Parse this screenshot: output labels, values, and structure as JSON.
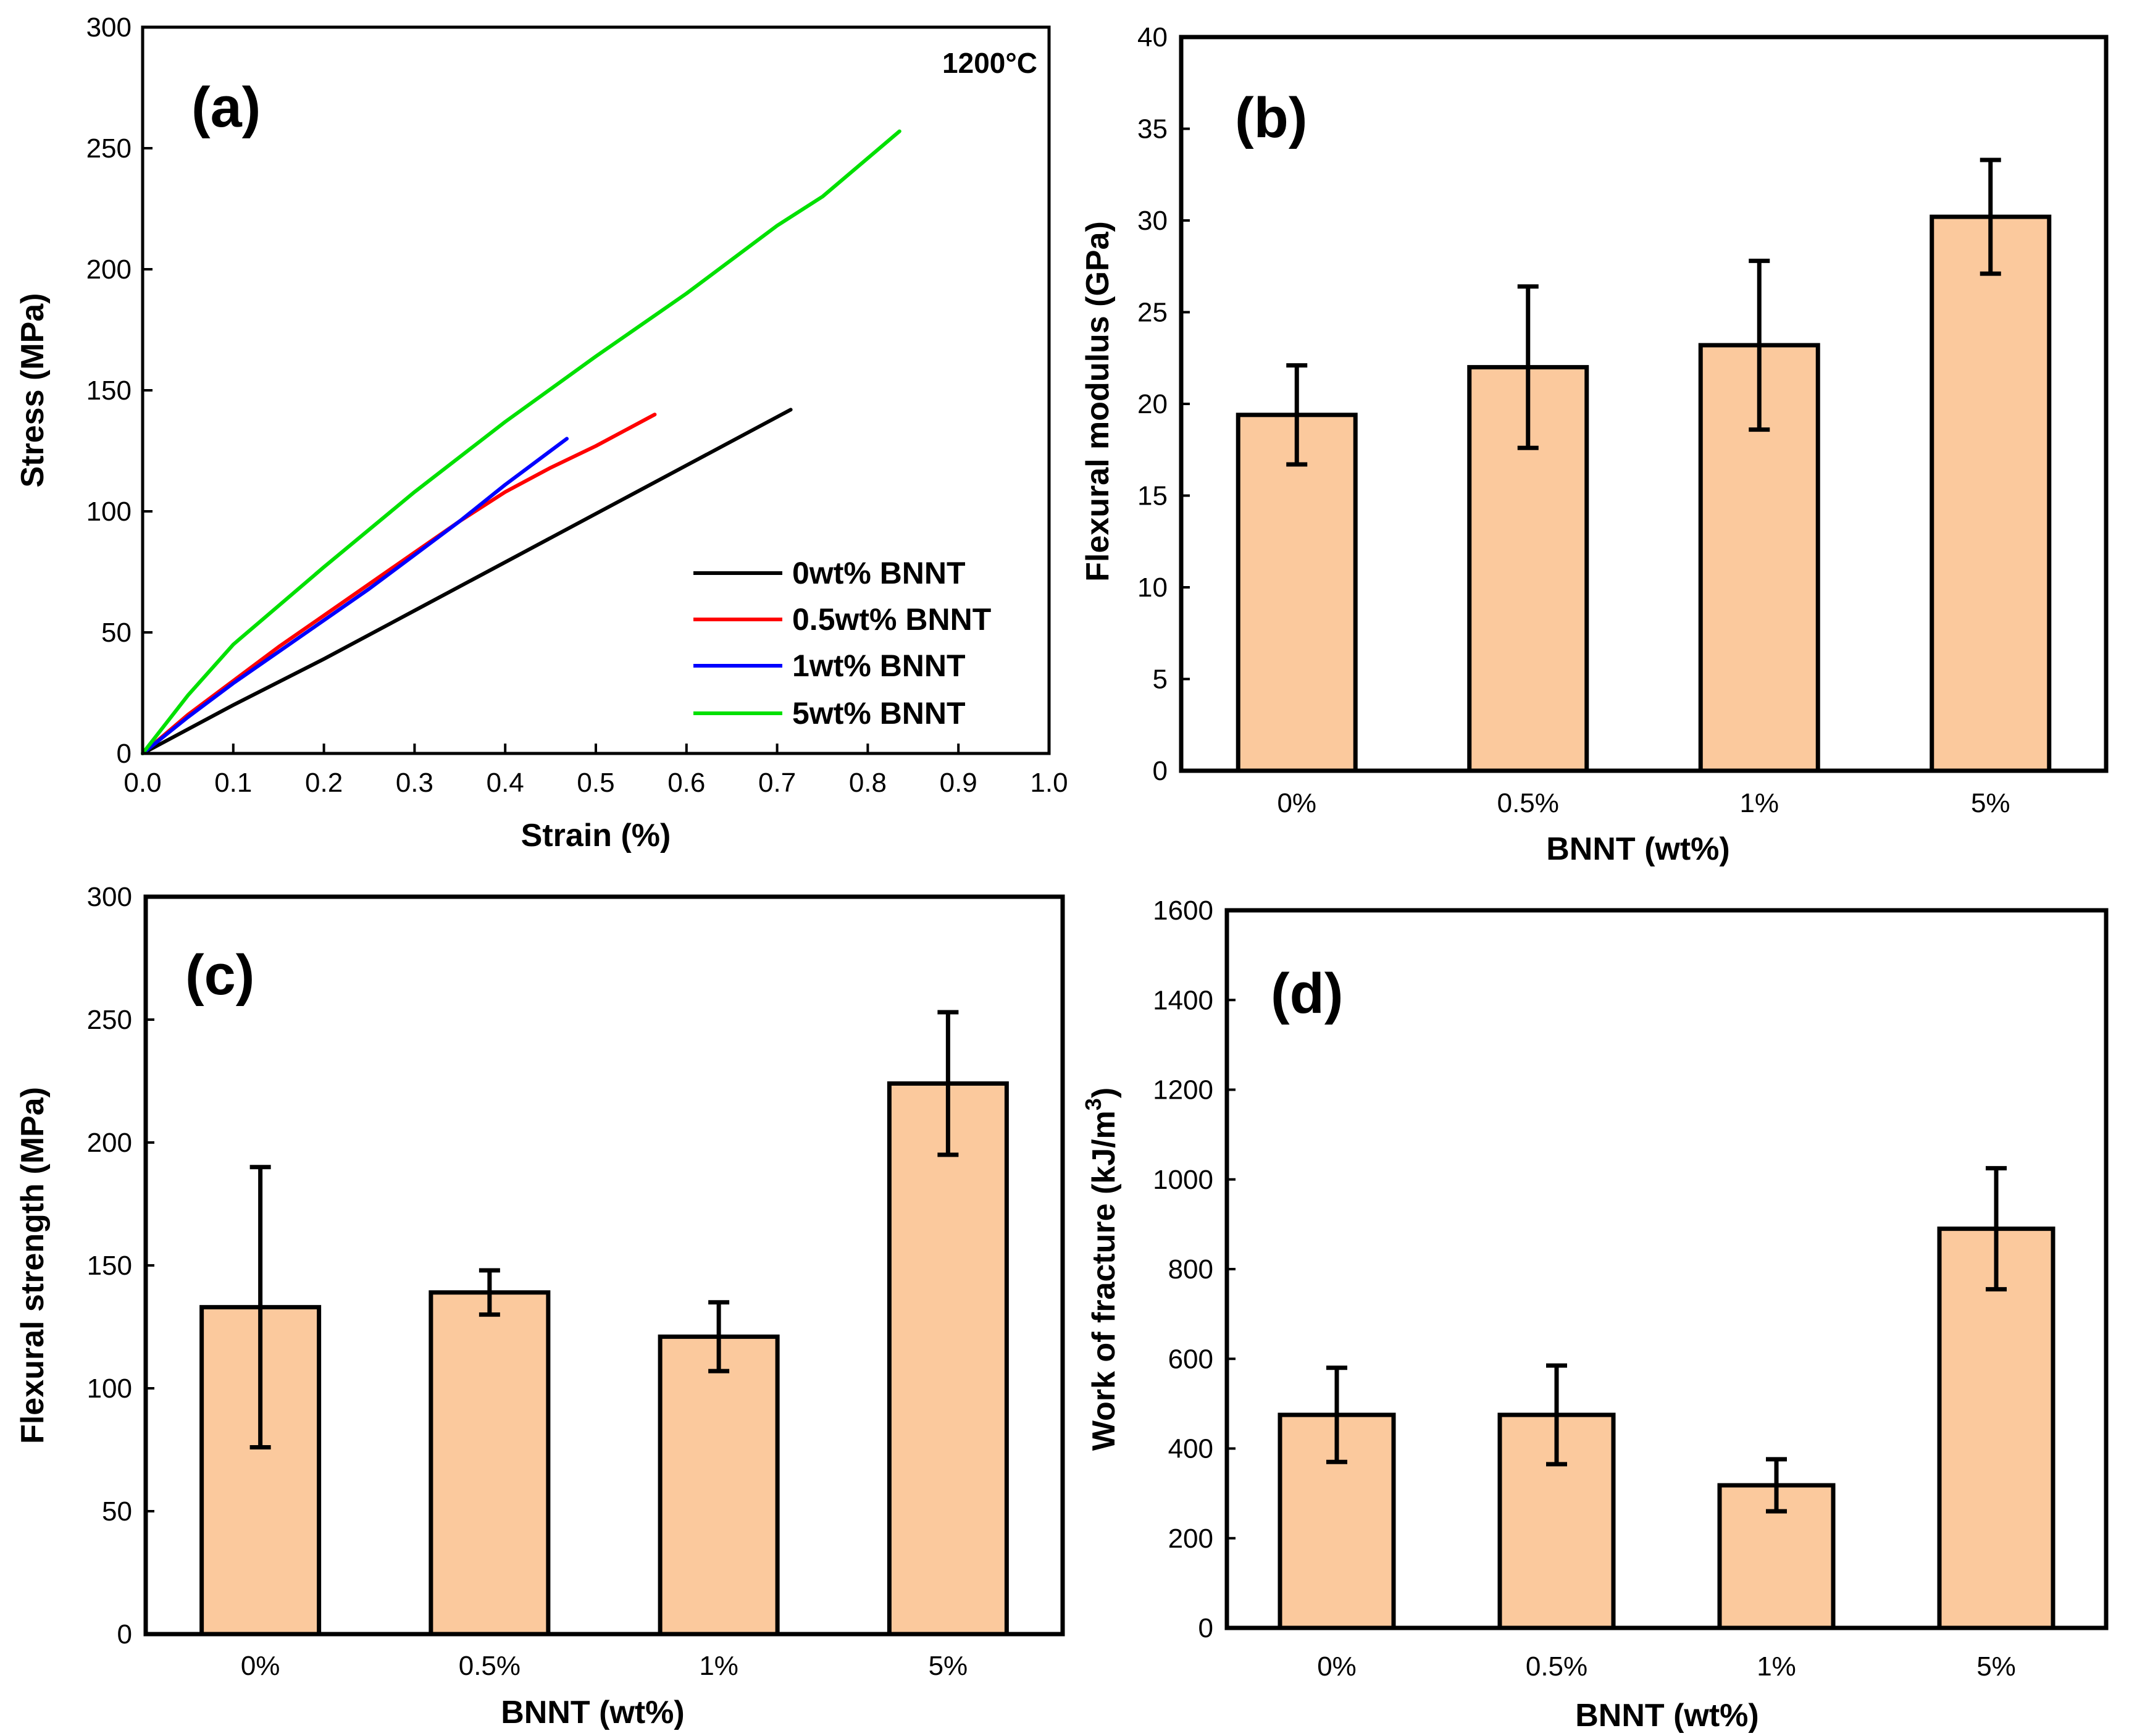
{
  "colors": {
    "bar_fill": "#fbc99d",
    "bar_stroke": "#000000",
    "axis": "#000000"
  },
  "chart_data": [
    {
      "id": "a",
      "type": "line",
      "panel_label": "(a)",
      "annotation": "1200°C",
      "xlabel": "Strain (%)",
      "ylabel": "Stress (MPa)",
      "xlim": [
        0,
        1.0
      ],
      "ylim": [
        0,
        300
      ],
      "xticks": [
        "0.0",
        "0.1",
        "0.2",
        "0.3",
        "0.4",
        "0.5",
        "0.6",
        "0.7",
        "0.8",
        "0.9",
        "1.0"
      ],
      "xtick_values": [
        0,
        0.1,
        0.2,
        0.3,
        0.4,
        0.5,
        0.6,
        0.7,
        0.8,
        0.9,
        1.0
      ],
      "yticks": [
        "0",
        "50",
        "100",
        "150",
        "200",
        "250",
        "300"
      ],
      "ytick_values": [
        0,
        50,
        100,
        150,
        200,
        250,
        300
      ],
      "legend_position": "bottom-right",
      "series": [
        {
          "name": "0wt% BNNT",
          "color": "#000000",
          "x": [
            0,
            0.1,
            0.2,
            0.3,
            0.4,
            0.5,
            0.6,
            0.715
          ],
          "y": [
            0,
            20,
            39,
            59,
            79,
            99,
            119,
            142
          ]
        },
        {
          "name": "0.5wt% BNNT",
          "color": "#ff0000",
          "x": [
            0,
            0.05,
            0.1,
            0.15,
            0.2,
            0.25,
            0.3,
            0.35,
            0.4,
            0.45,
            0.5,
            0.565
          ],
          "y": [
            0,
            16,
            30,
            44,
            57,
            70,
            83,
            96,
            108,
            118,
            127,
            140
          ]
        },
        {
          "name": "1wt% BNNT",
          "color": "#0000ff",
          "x": [
            0,
            0.05,
            0.1,
            0.15,
            0.2,
            0.25,
            0.3,
            0.35,
            0.4,
            0.468
          ],
          "y": [
            0,
            15,
            29,
            42,
            55,
            68,
            82,
            96,
            111,
            130
          ]
        },
        {
          "name": "5wt% BNNT",
          "color": "#00e000",
          "x": [
            0,
            0.05,
            0.1,
            0.2,
            0.3,
            0.4,
            0.5,
            0.6,
            0.7,
            0.75,
            0.835
          ],
          "y": [
            0,
            24,
            45,
            77,
            108,
            137,
            164,
            190,
            218,
            230,
            257
          ]
        }
      ]
    },
    {
      "id": "b",
      "type": "bar",
      "panel_label": "(b)",
      "xlabel": "BNNT (wt%)",
      "ylabel": "Flexural modulus (GPa)",
      "ylim": [
        0,
        40
      ],
      "yticks": [
        "0",
        "5",
        "10",
        "15",
        "20",
        "25",
        "30",
        "35",
        "40"
      ],
      "ytick_values": [
        0,
        5,
        10,
        15,
        20,
        25,
        30,
        35,
        40
      ],
      "categories": [
        "0%",
        "0.5%",
        "1%",
        "5%"
      ],
      "values": [
        19.4,
        22.0,
        23.2,
        30.2
      ],
      "errors": [
        2.7,
        4.4,
        4.6,
        3.1
      ]
    },
    {
      "id": "c",
      "type": "bar",
      "panel_label": "(c)",
      "xlabel": "BNNT (wt%)",
      "ylabel": "Flexural strength (MPa)",
      "ylim": [
        0,
        300
      ],
      "yticks": [
        "0",
        "50",
        "100",
        "150",
        "200",
        "250",
        "300"
      ],
      "ytick_values": [
        0,
        50,
        100,
        150,
        200,
        250,
        300
      ],
      "categories": [
        "0%",
        "0.5%",
        "1%",
        "5%"
      ],
      "values": [
        133,
        139,
        121,
        224
      ],
      "errors": [
        57,
        9,
        14,
        29
      ]
    },
    {
      "id": "d",
      "type": "bar",
      "panel_label": "(d)",
      "xlabel": "BNNT (wt%)",
      "ylabel_main": "Work of fracture (kJ/m",
      "ylabel_sup": "3",
      "ylabel_close": ")",
      "ylim": [
        0,
        1600
      ],
      "yticks": [
        "0",
        "200",
        "400",
        "600",
        "800",
        "1000",
        "1200",
        "1400",
        "1600"
      ],
      "ytick_values": [
        0,
        200,
        400,
        600,
        800,
        1000,
        1200,
        1400,
        1600
      ],
      "categories": [
        "0%",
        "0.5%",
        "1%",
        "5%"
      ],
      "values": [
        475,
        475,
        318,
        890
      ],
      "errors": [
        105,
        110,
        58,
        135
      ]
    }
  ]
}
